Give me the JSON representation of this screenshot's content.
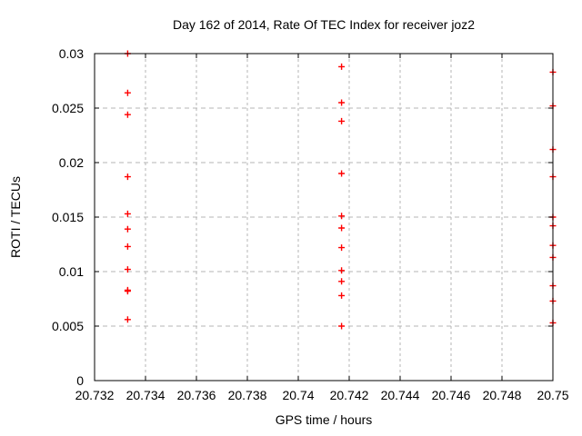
{
  "chart_data": {
    "type": "scatter",
    "title": "Day 162 of 2014, Rate Of TEC Index for receiver joz2",
    "xlabel": "GPS time / hours",
    "ylabel": "ROTI / TECUs",
    "xlim": [
      20.732,
      20.75
    ],
    "ylim": [
      0,
      0.03
    ],
    "xtick_values": [
      20.732,
      20.734,
      20.736,
      20.738,
      20.74,
      20.742,
      20.744,
      20.746,
      20.748,
      20.75
    ],
    "xtick_labels": [
      "20.732",
      "20.734",
      "20.736",
      "20.738",
      "20.74",
      "20.742",
      "20.744",
      "20.746",
      "20.748",
      "20.75"
    ],
    "ytick_values": [
      0,
      0.005,
      0.01,
      0.015,
      0.02,
      0.025,
      0.03
    ],
    "ytick_labels": [
      "0",
      "0.005",
      "0.01",
      "0.015",
      "0.02",
      "0.025",
      "0.03"
    ],
    "grid": true,
    "legend": "none",
    "marker": "plus",
    "marker_color": "#ff0000",
    "grid_color": "#b4b4b4",
    "axis_color": "#000000",
    "background_color": "#ffffff",
    "series": [
      {
        "name": "ROTI",
        "points": [
          [
            20.7333,
            0.03
          ],
          [
            20.7333,
            0.0264
          ],
          [
            20.7333,
            0.0244
          ],
          [
            20.7333,
            0.0187
          ],
          [
            20.7333,
            0.0153
          ],
          [
            20.7333,
            0.0139
          ],
          [
            20.7333,
            0.0123
          ],
          [
            20.7333,
            0.0102
          ],
          [
            20.7333,
            0.0083
          ],
          [
            20.7333,
            0.0082
          ],
          [
            20.7333,
            0.0056
          ],
          [
            20.7417,
            0.0288
          ],
          [
            20.7417,
            0.0255
          ],
          [
            20.7417,
            0.0238
          ],
          [
            20.7417,
            0.019
          ],
          [
            20.7417,
            0.0151
          ],
          [
            20.7417,
            0.014
          ],
          [
            20.7417,
            0.0122
          ],
          [
            20.7417,
            0.0101
          ],
          [
            20.7417,
            0.0091
          ],
          [
            20.7417,
            0.0078
          ],
          [
            20.7417,
            0.005
          ],
          [
            20.75,
            0.0283
          ],
          [
            20.75,
            0.0252
          ],
          [
            20.75,
            0.0212
          ],
          [
            20.75,
            0.0187
          ],
          [
            20.75,
            0.015
          ],
          [
            20.75,
            0.0142
          ],
          [
            20.75,
            0.0124
          ],
          [
            20.75,
            0.0113
          ],
          [
            20.75,
            0.0087
          ],
          [
            20.75,
            0.0073
          ],
          [
            20.75,
            0.0053
          ]
        ]
      }
    ]
  }
}
